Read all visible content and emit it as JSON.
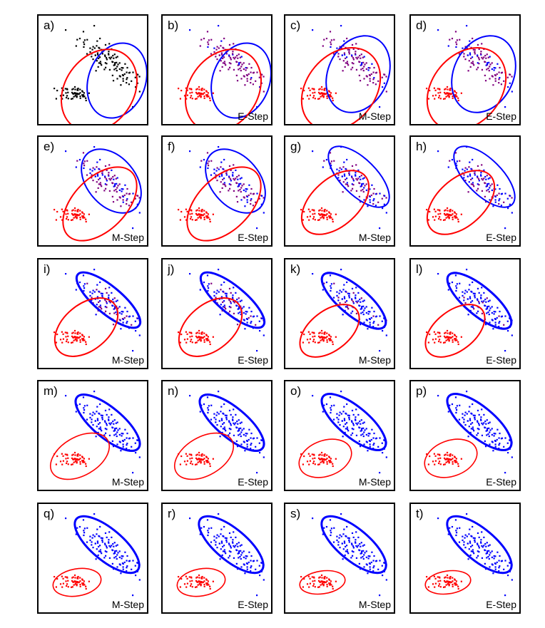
{
  "colors": {
    "cluster1": "#0000ff",
    "cluster2": "#ff0000",
    "mixed": "#800080",
    "unassigned": "#000000"
  },
  "panels": [
    {
      "label": "a)",
      "step": "",
      "ellipses": [
        {
          "cx": 110,
          "cy": 91,
          "rx": 40,
          "ry": 54,
          "rot": 20,
          "color": "#0000ff",
          "w": 2
        },
        {
          "cx": 85,
          "cy": 105,
          "rx": 48,
          "ry": 62,
          "rot": 35,
          "color": "#ff0000",
          "w": 2
        }
      ]
    },
    {
      "label": "b)",
      "step": "E-Step",
      "ellipses": [
        {
          "cx": 110,
          "cy": 91,
          "rx": 40,
          "ry": 54,
          "rot": 20,
          "color": "#0000ff",
          "w": 2
        },
        {
          "cx": 85,
          "cy": 105,
          "rx": 48,
          "ry": 62,
          "rot": 35,
          "color": "#ff0000",
          "w": 2
        }
      ]
    },
    {
      "label": "c)",
      "step": "M-Step",
      "ellipses": [
        {
          "cx": 102,
          "cy": 82,
          "rx": 42,
          "ry": 56,
          "rot": 25,
          "color": "#0000ff",
          "w": 2
        },
        {
          "cx": 78,
          "cy": 103,
          "rx": 48,
          "ry": 64,
          "rot": 40,
          "color": "#ff0000",
          "w": 2
        }
      ]
    },
    {
      "label": "d)",
      "step": "E-Step",
      "ellipses": [
        {
          "cx": 102,
          "cy": 82,
          "rx": 42,
          "ry": 56,
          "rot": 25,
          "color": "#0000ff",
          "w": 2
        },
        {
          "cx": 78,
          "cy": 103,
          "rx": 48,
          "ry": 64,
          "rot": 40,
          "color": "#ff0000",
          "w": 2
        }
      ]
    },
    {
      "label": "e)",
      "step": "M-Step",
      "ellipses": [
        {
          "cx": 102,
          "cy": 62,
          "rx": 34,
          "ry": 51,
          "rot": -40,
          "color": "#0000ff",
          "w": 2
        },
        {
          "cx": 86,
          "cy": 94,
          "rx": 37,
          "ry": 63,
          "rot": 45,
          "color": "#ff0000",
          "w": 2
        }
      ]
    },
    {
      "label": "f)",
      "step": "E-Step",
      "ellipses": [
        {
          "cx": 102,
          "cy": 62,
          "rx": 34,
          "ry": 51,
          "rot": -40,
          "color": "#0000ff",
          "w": 2
        },
        {
          "cx": 86,
          "cy": 94,
          "rx": 37,
          "ry": 63,
          "rot": 45,
          "color": "#ff0000",
          "w": 2
        }
      ]
    },
    {
      "label": "g)",
      "step": "M-Step",
      "ellipses": [
        {
          "cx": 103,
          "cy": 56,
          "rx": 25,
          "ry": 55,
          "rot": -45,
          "color": "#0000ff",
          "w": 2
        },
        {
          "cx": 70,
          "cy": 92,
          "rx": 33,
          "ry": 56,
          "rot": 48,
          "color": "#ff0000",
          "w": 2
        }
      ]
    },
    {
      "label": "h)",
      "step": "E-Step",
      "ellipses": [
        {
          "cx": 103,
          "cy": 56,
          "rx": 25,
          "ry": 55,
          "rot": -45,
          "color": "#0000ff",
          "w": 2
        },
        {
          "cx": 70,
          "cy": 92,
          "rx": 33,
          "ry": 56,
          "rot": 48,
          "color": "#ff0000",
          "w": 2
        }
      ]
    },
    {
      "label": "i)",
      "step": "M-Step",
      "ellipses": [
        {
          "cx": 98,
          "cy": 57,
          "rx": 19,
          "ry": 56,
          "rot": -50,
          "color": "#0000ff",
          "w": 3
        },
        {
          "cx": 67,
          "cy": 95,
          "rx": 32,
          "ry": 51,
          "rot": 50,
          "color": "#ff0000",
          "w": 2
        }
      ]
    },
    {
      "label": "j)",
      "step": "E-Step",
      "ellipses": [
        {
          "cx": 98,
          "cy": 57,
          "rx": 19,
          "ry": 56,
          "rot": -50,
          "color": "#0000ff",
          "w": 3
        },
        {
          "cx": 67,
          "cy": 95,
          "rx": 32,
          "ry": 51,
          "rot": 50,
          "color": "#ff0000",
          "w": 2
        }
      ]
    },
    {
      "label": "k)",
      "step": "M-Step",
      "ellipses": [
        {
          "cx": 96,
          "cy": 58,
          "rx": 20,
          "ry": 56,
          "rot": -50,
          "color": "#0000ff",
          "w": 3
        },
        {
          "cx": 62,
          "cy": 100,
          "rx": 28,
          "ry": 48,
          "rot": 52,
          "color": "#ff0000",
          "w": 2
        }
      ]
    },
    {
      "label": "l)",
      "step": "E-Step",
      "ellipses": [
        {
          "cx": 96,
          "cy": 58,
          "rx": 20,
          "ry": 56,
          "rot": -50,
          "color": "#0000ff",
          "w": 3
        },
        {
          "cx": 62,
          "cy": 100,
          "rx": 28,
          "ry": 48,
          "rot": 52,
          "color": "#ff0000",
          "w": 2
        }
      ]
    },
    {
      "label": "m)",
      "step": "M-Step",
      "ellipses": [
        {
          "cx": 97,
          "cy": 58,
          "rx": 21,
          "ry": 56,
          "rot": -50,
          "color": "#0000ff",
          "w": 3
        },
        {
          "cx": 58,
          "cy": 105,
          "rx": 27,
          "ry": 45,
          "rot": 60,
          "color": "#ff0000",
          "w": 1.6
        }
      ]
    },
    {
      "label": "n)",
      "step": "E-Step",
      "ellipses": [
        {
          "cx": 97,
          "cy": 58,
          "rx": 21,
          "ry": 56,
          "rot": -50,
          "color": "#0000ff",
          "w": 3
        },
        {
          "cx": 58,
          "cy": 105,
          "rx": 27,
          "ry": 45,
          "rot": 60,
          "color": "#ff0000",
          "w": 1.6
        }
      ]
    },
    {
      "label": "o)",
      "step": "M-Step",
      "ellipses": [
        {
          "cx": 96,
          "cy": 57,
          "rx": 21,
          "ry": 56,
          "rot": -50,
          "color": "#0000ff",
          "w": 3
        },
        {
          "cx": 56,
          "cy": 108,
          "rx": 25,
          "ry": 38,
          "rot": 70,
          "color": "#ff0000",
          "w": 1.6
        }
      ]
    },
    {
      "label": "p)",
      "step": "E-Step",
      "ellipses": [
        {
          "cx": 96,
          "cy": 57,
          "rx": 21,
          "ry": 56,
          "rot": -50,
          "color": "#0000ff",
          "w": 3
        },
        {
          "cx": 56,
          "cy": 108,
          "rx": 25,
          "ry": 38,
          "rot": 70,
          "color": "#ff0000",
          "w": 1.6
        }
      ]
    },
    {
      "label": "q)",
      "step": "M-Step",
      "ellipses": [
        {
          "cx": 96,
          "cy": 57,
          "rx": 22,
          "ry": 56,
          "rot": -50,
          "color": "#0000ff",
          "w": 3
        },
        {
          "cx": 54,
          "cy": 110,
          "rx": 19,
          "ry": 34,
          "rot": 80,
          "color": "#ff0000",
          "w": 1.6
        }
      ]
    },
    {
      "label": "r)",
      "step": "E-Step",
      "ellipses": [
        {
          "cx": 96,
          "cy": 57,
          "rx": 22,
          "ry": 56,
          "rot": -50,
          "color": "#0000ff",
          "w": 3
        },
        {
          "cx": 54,
          "cy": 110,
          "rx": 19,
          "ry": 34,
          "rot": 80,
          "color": "#ff0000",
          "w": 1.6
        }
      ]
    },
    {
      "label": "s)",
      "step": "M-Step",
      "ellipses": [
        {
          "cx": 96,
          "cy": 57,
          "rx": 22,
          "ry": 56,
          "rot": -50,
          "color": "#0000ff",
          "w": 3
        },
        {
          "cx": 52,
          "cy": 110,
          "rx": 16,
          "ry": 32,
          "rot": 82,
          "color": "#ff0000",
          "w": 1.6
        }
      ]
    },
    {
      "label": "t)",
      "step": "E-Step",
      "ellipses": [
        {
          "cx": 96,
          "cy": 57,
          "rx": 22,
          "ry": 56,
          "rot": -50,
          "color": "#0000ff",
          "w": 3
        },
        {
          "cx": 52,
          "cy": 110,
          "rx": 16,
          "ry": 32,
          "rot": 82,
          "color": "#ff0000",
          "w": 1.6
        }
      ]
    }
  ]
}
